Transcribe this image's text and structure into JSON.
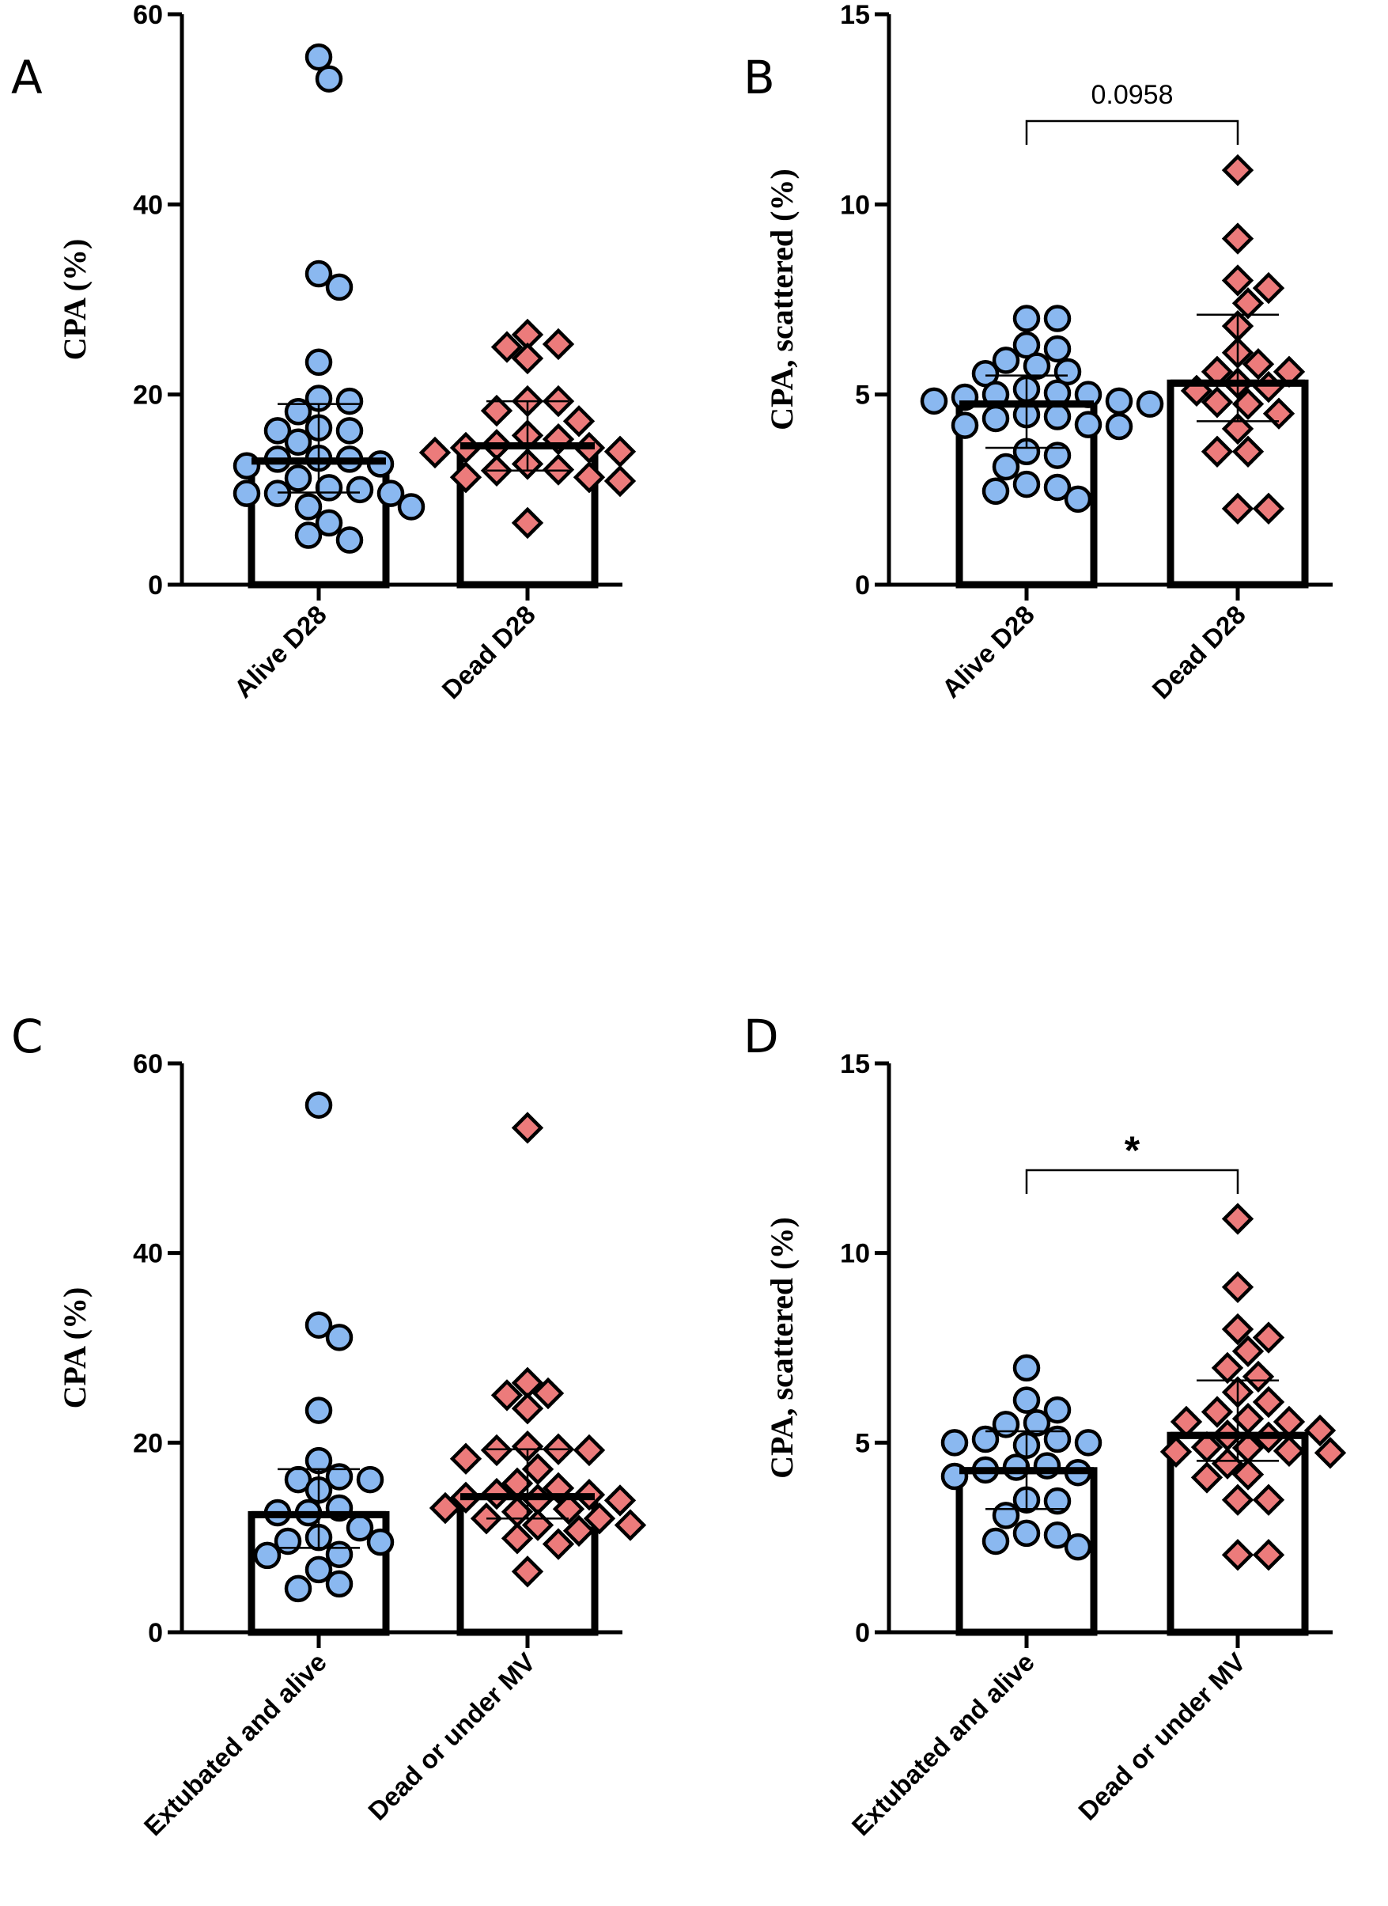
{
  "colors": {
    "group1": "#8ab8f0",
    "group2": "#ec7b7b",
    "stroke": "#000000"
  },
  "chart_data": [
    {
      "panel": "A",
      "type": "bar+scatter",
      "ylabel": "CPA (%)",
      "ylim": [
        0,
        60
      ],
      "yticks": [
        0,
        20,
        40,
        60
      ],
      "categories": [
        "Alive D28",
        "Dead D28"
      ],
      "series": [
        {
          "name": "Alive D28",
          "marker": "circle",
          "mean": 13.0,
          "err_low": 9.7,
          "err_high": 19.0,
          "values": [
            55.5,
            53.2,
            32.7,
            31.3,
            23.4,
            19.6,
            19.3,
            18.2,
            16.5,
            16.2,
            16.2,
            15.0,
            13.2,
            12.7,
            13.2,
            13.3,
            12.5,
            11.2,
            9.6,
            10.0,
            10.2,
            9.6,
            9.6,
            8.2,
            8.2,
            6.5,
            4.7,
            5.2
          ]
        },
        {
          "name": "Dead D28",
          "marker": "diamond",
          "mean": 14.6,
          "err_low": 12.0,
          "err_high": 19.3,
          "values": [
            26.3,
            25.3,
            25.0,
            23.8,
            19.3,
            19.3,
            18.3,
            17.2,
            15.7,
            15.3,
            14.7,
            14.4,
            14.4,
            14.0,
            13.9,
            12.7,
            12.1,
            12.0,
            11.3,
            11.3,
            10.9,
            6.5
          ]
        }
      ],
      "annotation": ""
    },
    {
      "panel": "B",
      "type": "bar+scatter",
      "ylabel": "CPA, scattered (%)",
      "ylim": [
        0,
        15
      ],
      "yticks": [
        0,
        5,
        10,
        15
      ],
      "categories": [
        "Alive D28",
        "Dead D28"
      ],
      "series": [
        {
          "name": "Alive D28",
          "marker": "circle",
          "mean": 4.75,
          "err_low": 3.6,
          "err_high": 5.5,
          "values": [
            7.0,
            7.0,
            6.3,
            6.2,
            5.9,
            5.75,
            5.55,
            5.6,
            5.04,
            5.0,
            5.0,
            4.93,
            5.14,
            4.83,
            4.83,
            4.75,
            4.42,
            4.47,
            4.37,
            4.19,
            4.16,
            4.21,
            3.5,
            3.4,
            3.1,
            2.46,
            2.56,
            2.64,
            2.25
          ]
        },
        {
          "name": "Dead D28",
          "marker": "diamond",
          "mean": 5.3,
          "err_low": 4.3,
          "err_high": 7.1,
          "values": [
            10.9,
            9.1,
            8.0,
            7.8,
            7.4,
            6.8,
            6.1,
            5.8,
            5.6,
            5.6,
            5.3,
            5.2,
            5.1,
            4.8,
            4.75,
            4.5,
            4.1,
            3.5,
            3.5,
            2.0,
            2.0
          ]
        }
      ],
      "annotation": "0.0958"
    },
    {
      "panel": "C",
      "type": "bar+scatter",
      "ylabel": "CPA (%)",
      "ylim": [
        0,
        60
      ],
      "yticks": [
        0,
        20,
        40,
        60
      ],
      "categories": [
        "Extubated and alive",
        "Dead or under MV"
      ],
      "series": [
        {
          "name": "Extubated and alive",
          "marker": "circle",
          "mean": 12.4,
          "err_low": 8.9,
          "err_high": 17.2,
          "values": [
            55.6,
            32.4,
            31.1,
            23.4,
            18.1,
            15.0,
            16.1,
            16.1,
            16.4,
            12.6,
            12.6,
            13.1,
            11.0,
            9.6,
            9.5,
            10.0,
            8.2,
            8.1,
            6.6,
            4.6,
            5.1
          ]
        },
        {
          "name": "Dead or under MV",
          "marker": "diamond",
          "mean": 14.3,
          "err_low": 12.0,
          "err_high": 19.3,
          "values": [
            53.2,
            26.3,
            25.0,
            25.2,
            23.6,
            19.6,
            19.3,
            19.2,
            19.2,
            18.3,
            17.2,
            15.7,
            15.2,
            14.5,
            14.6,
            13.9,
            14.0,
            14.2,
            13.1,
            13.0,
            12.7,
            12.0,
            12.0,
            11.3,
            11.3,
            10.7,
            9.3,
            9.9,
            6.4
          ]
        }
      ],
      "annotation": ""
    },
    {
      "panel": "D",
      "type": "bar+scatter",
      "ylabel": "CPA, scattered (%)",
      "ylim": [
        0,
        15
      ],
      "yticks": [
        0,
        5,
        10,
        15
      ],
      "categories": [
        "Extubated and alive",
        "Dead or under MV"
      ],
      "series": [
        {
          "name": "Extubated and alive",
          "marker": "circle",
          "mean": 4.26,
          "err_low": 3.25,
          "err_high": 5.3,
          "values": [
            6.97,
            6.12,
            5.86,
            5.48,
            5.52,
            5.09,
            5.09,
            5.0,
            4.93,
            5.0,
            4.28,
            4.35,
            4.39,
            4.11,
            4.21,
            3.46,
            3.49,
            3.08,
            2.61,
            2.56,
            2.4,
            2.25
          ]
        },
        {
          "name": "Dead or under MV",
          "marker": "diamond",
          "mean": 5.19,
          "err_low": 4.52,
          "err_high": 6.64,
          "values": [
            10.9,
            9.1,
            7.99,
            7.77,
            7.41,
            6.97,
            6.74,
            6.33,
            6.07,
            5.81,
            5.55,
            5.63,
            5.55,
            5.19,
            5.32,
            5.14,
            4.86,
            4.73,
            4.78,
            4.76,
            4.88,
            4.45,
            4.08,
            4.16,
            3.49,
            3.49,
            2.04,
            2.04
          ]
        }
      ],
      "annotation": "*"
    }
  ]
}
